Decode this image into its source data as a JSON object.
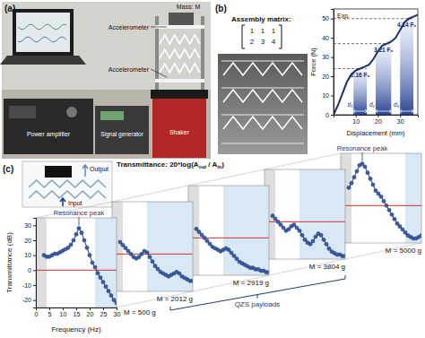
{
  "panel_a": {
    "label": "(a)",
    "annotations": [
      "Mass: M",
      "Accelerometer",
      "Accelerometer",
      "Power amplifier",
      "Signal generator",
      "Shaker"
    ]
  },
  "panel_b": {
    "label": "(b)",
    "matrix_title": "Assembly matrix:",
    "matrix": [
      [
        1,
        1,
        1
      ],
      [
        2,
        3,
        4
      ]
    ]
  },
  "panel_c": {
    "label": "(c)",
    "inset": {
      "output": "Output",
      "input": "Input"
    },
    "title_parts": [
      "Transmittance: 20*log(A",
      "out",
      " / A",
      "in",
      ")"
    ],
    "group_label": "QZS payloads"
  },
  "chart_data": [
    {
      "type": "line",
      "x_label": "Displacement (mm)",
      "y_label": "Force (N)",
      "annotation": "Exp.",
      "color": "#1b2f6b",
      "x": [
        0,
        2,
        4,
        6,
        8,
        10,
        12,
        14,
        16,
        18,
        20,
        22,
        24,
        26,
        28,
        30,
        32,
        34,
        36,
        38
      ],
      "values": [
        0,
        5,
        11,
        17,
        21,
        23,
        24,
        25,
        26,
        29,
        33,
        36,
        37,
        38,
        40,
        44,
        48,
        50,
        51,
        52
      ],
      "xlim": [
        0,
        38
      ],
      "ylim": [
        0,
        55
      ],
      "xticks": [
        10,
        20,
        30
      ],
      "yticks": [
        0,
        10,
        20,
        30,
        40,
        50
      ],
      "plateaus": [
        {
          "x": [
            9,
            15
          ],
          "force": 24,
          "label": "2.16 F₀",
          "d": "d₁"
        },
        {
          "x": [
            19,
            26
          ],
          "force": 37,
          "label": "3.21 F₀",
          "d": "d₂"
        },
        {
          "x": [
            30,
            36
          ],
          "force": 50,
          "label": "4.14 F₀",
          "d": "d₃"
        }
      ]
    },
    {
      "type": "line",
      "x_label": "Frequency (Hz)",
      "y_label": "Transmittance (dB)",
      "marker": "circle",
      "xlim": [
        0,
        30
      ],
      "ylim": [
        -25,
        35
      ],
      "xticks": [
        0,
        5,
        10,
        15,
        20,
        25,
        30
      ],
      "yticks": [
        -20,
        -10,
        0,
        10,
        20,
        30
      ],
      "reference_line": 0,
      "x": [
        3,
        4,
        5,
        6,
        7,
        8,
        9,
        10,
        11,
        12,
        13,
        14,
        15,
        16,
        17,
        18,
        19,
        20,
        21,
        22,
        23,
        24,
        25,
        26,
        27,
        28,
        29,
        30
      ],
      "series": [
        {
          "name": "M = 500 g",
          "color": "#1f3a73",
          "bands": [
            [
              0,
              4
            ],
            [
              22,
              30
            ]
          ],
          "annotation": {
            "text": "Resonance peak",
            "x": 16,
            "y": 28
          },
          "values": [
            10,
            9,
            9,
            10,
            11,
            11,
            12,
            13,
            14,
            15,
            17,
            20,
            24,
            28,
            25,
            20,
            15,
            10,
            5,
            2,
            -2,
            -5,
            -8,
            -11,
            -14,
            -17,
            -20,
            -22
          ]
        },
        {
          "name": "M = 2012 g",
          "color": "#1f3a73",
          "bands": [
            [
              0,
              4
            ],
            [
              13,
              30
            ]
          ],
          "values": [
            8,
            6,
            4,
            2,
            0,
            -2,
            -3,
            -2,
            0,
            2,
            1,
            -2,
            -5,
            -8,
            -10,
            -12,
            -13,
            -14,
            -15,
            -14,
            -13,
            -12,
            -13,
            -15,
            -16,
            -17,
            -18,
            -18
          ]
        },
        {
          "name": "M = 2919 g",
          "color": "#1f3a73",
          "bands": [
            [
              0,
              4
            ],
            [
              13,
              30
            ]
          ],
          "values": [
            6,
            4,
            2,
            0,
            -2,
            -4,
            -6,
            -7,
            -8,
            -9,
            -8,
            -7,
            -8,
            -10,
            -12,
            -14,
            -16,
            -17,
            -18,
            -19,
            -20,
            -20,
            -21,
            -21,
            -22,
            -22,
            -23,
            -23
          ]
        },
        {
          "name": "M = 3804 g",
          "color": "#1f3a73",
          "bands": [
            [
              0,
              4
            ],
            [
              13,
              30
            ]
          ],
          "values": [
            4,
            2,
            0,
            -2,
            -4,
            -6,
            -5,
            -3,
            -2,
            -4,
            -6,
            -9,
            -12,
            -14,
            -15,
            -13,
            -10,
            -8,
            -9,
            -12,
            -15,
            -18,
            -20,
            -21,
            -22,
            -22,
            -23,
            -23
          ]
        },
        {
          "name": "M = 5000 g",
          "color": "#1f3a73",
          "bands": [
            [
              0,
              4
            ],
            [
              24,
              30
            ]
          ],
          "annotation": {
            "text": "Resonance peak",
            "x": 8,
            "y": 28
          },
          "values": [
            12,
            15,
            19,
            23,
            27,
            28,
            26,
            22,
            18,
            14,
            10,
            8,
            6,
            3,
            0,
            -3,
            -6,
            -9,
            -12,
            -14,
            -16,
            -18,
            -20,
            -21,
            -22,
            -22,
            -21,
            -20
          ]
        }
      ]
    }
  ]
}
